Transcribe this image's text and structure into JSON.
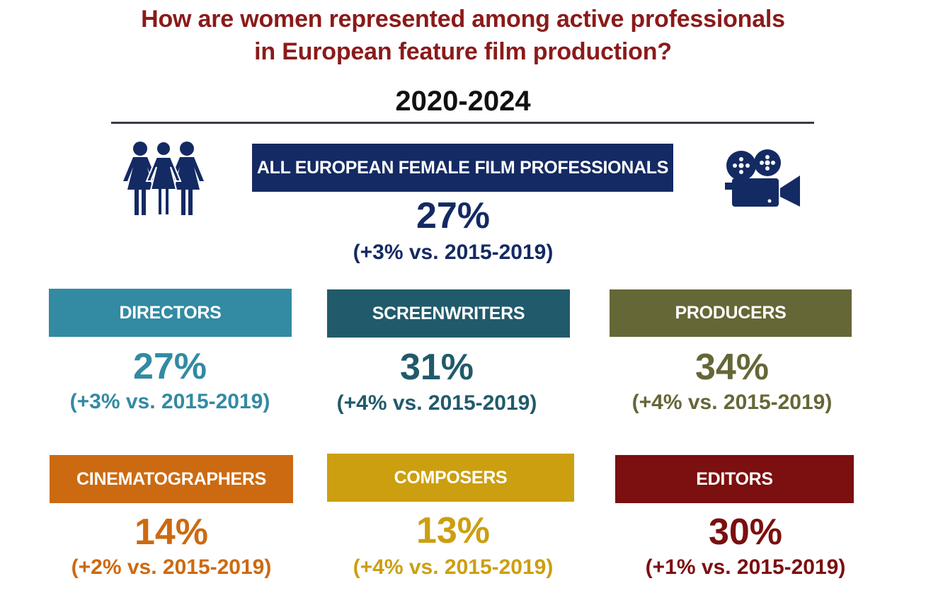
{
  "title": "How are women represented among active professionals\n    in European feature film production?",
  "period": "2020-2024",
  "colors": {
    "title": "#8b1a1a",
    "all": "#142a63",
    "directors": "#338aa3",
    "screenwriters": "#215a6b",
    "producers": "#666737",
    "cinematographers": "#cc6a11",
    "composers": "#cc9f11",
    "editors": "#7c0f0f"
  },
  "icons": {
    "left": "women-group-icon",
    "right": "film-camera-icon"
  },
  "overall": {
    "label": "ALL EUROPEAN FEMALE FILM PROFESSIONALS",
    "value": "27%",
    "change": "(+3% vs. 2015-2019)"
  },
  "categories": [
    {
      "key": "directors",
      "label": "DIRECTORS",
      "value": "27%",
      "change": "(+3% vs. 2015-2019)"
    },
    {
      "key": "screenwriters",
      "label": "SCREENWRITERS",
      "value": "31%",
      "change": "(+4% vs. 2015-2019)"
    },
    {
      "key": "producers",
      "label": "PRODUCERS",
      "value": "34%",
      "change": "(+4% vs. 2015-2019)"
    },
    {
      "key": "cinematographers",
      "label": "CINEMATOGRAPHERS",
      "value": "14%",
      "change": "(+2% vs. 2015-2019)"
    },
    {
      "key": "composers",
      "label": "COMPOSERS",
      "value": "13%",
      "change": "(+4% vs. 2015-2019)"
    },
    {
      "key": "editors",
      "label": "EDITORS",
      "value": "30%",
      "change": "(+1% vs. 2015-2019)"
    }
  ]
}
